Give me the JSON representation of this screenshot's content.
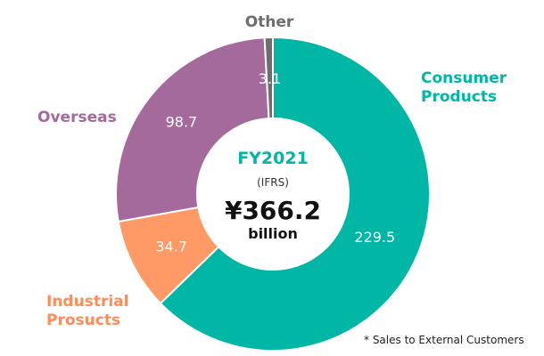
{
  "chart_data": {
    "type": "pie",
    "variant": "donut",
    "categories": [
      "Consumer Products",
      "Industrial Prosucts",
      "Overseas",
      "Other"
    ],
    "category_lines": [
      [
        "Consumer",
        "Products"
      ],
      [
        "Industrial",
        "Prosucts"
      ],
      [
        "Overseas"
      ],
      [
        "Other"
      ]
    ],
    "values": [
      229.5,
      34.7,
      98.7,
      3.1
    ],
    "value_labels": [
      "229.5",
      "34.7",
      "98.7",
      "3.1"
    ],
    "colors": [
      "#00b6a5",
      "#ff9966",
      "#a56a9c",
      "#6d6d6d"
    ],
    "label_colors": [
      "#00b6a5",
      "#ff8c5a",
      "#a56a9c",
      "#6d6d6d"
    ],
    "start_angle_deg": 0,
    "direction": "clockwise",
    "center": {
      "year": "FY2021",
      "basis": "(IFRS)",
      "total": "¥366.2",
      "unit": "billion"
    },
    "footnote": "* Sales to External Customers"
  }
}
